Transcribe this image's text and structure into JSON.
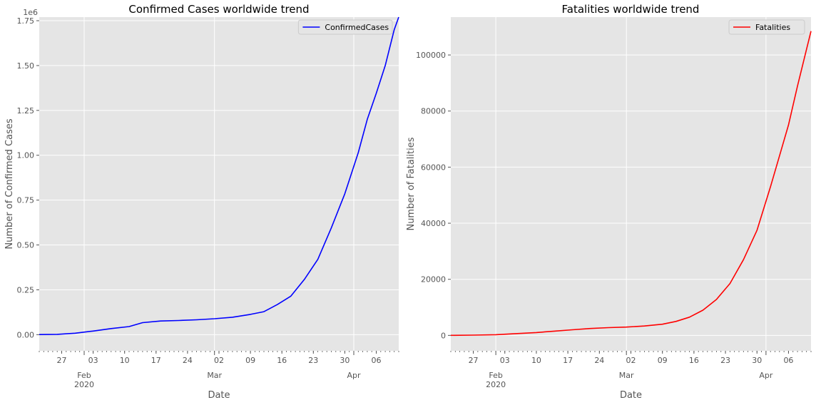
{
  "chart_data": [
    {
      "type": "line",
      "title": "Confirmed Cases worldwide trend",
      "xlabel": "Date",
      "ylabel": "Number of Confirmed Cases",
      "y_offset_text": "1e6",
      "ylim": [
        -0.09,
        1.77
      ],
      "yticks": [
        0.0,
        0.25,
        0.5,
        0.75,
        1.0,
        1.25,
        1.5,
        1.75
      ],
      "ytick_labels": [
        "0.00",
        "0.25",
        "0.50",
        "0.75",
        "1.00",
        "1.25",
        "1.50",
        "1.75"
      ],
      "x_range": [
        "2020-01-22",
        "2020-04-11"
      ],
      "xtick_labels": [
        "27",
        "03",
        "10",
        "17",
        "24",
        "02",
        "09",
        "16",
        "23",
        "30",
        "06"
      ],
      "major_month_labels": [
        "Feb",
        "Mar",
        "Apr"
      ],
      "year_label": "2020",
      "legend_position": "top-right",
      "grid": true,
      "series": [
        {
          "name": "ConfirmedCases",
          "color": "#0000ff",
          "x": [
            "2020-01-22",
            "2020-01-26",
            "2020-01-30",
            "2020-02-03",
            "2020-02-07",
            "2020-02-11",
            "2020-02-14",
            "2020-02-18",
            "2020-02-22",
            "2020-02-26",
            "2020-03-01",
            "2020-03-05",
            "2020-03-09",
            "2020-03-12",
            "2020-03-15",
            "2020-03-18",
            "2020-03-21",
            "2020-03-24",
            "2020-03-27",
            "2020-03-30",
            "2020-04-02",
            "2020-04-04",
            "2020-04-06",
            "2020-04-08",
            "2020-04-10",
            "2020-04-11"
          ],
          "y": [
            0.0006,
            0.002,
            0.008,
            0.02,
            0.034,
            0.045,
            0.067,
            0.076,
            0.079,
            0.083,
            0.089,
            0.097,
            0.113,
            0.128,
            0.168,
            0.215,
            0.308,
            0.42,
            0.595,
            0.785,
            1.015,
            1.2,
            1.345,
            1.5,
            1.7,
            1.77
          ]
        }
      ]
    },
    {
      "type": "line",
      "title": "Fatalities worldwide trend",
      "xlabel": "Date",
      "ylabel": "Number of Fatalities",
      "ylim": [
        -5500,
        113500
      ],
      "yticks": [
        0,
        20000,
        40000,
        60000,
        80000,
        100000
      ],
      "ytick_labels": [
        "0",
        "20000",
        "40000",
        "60000",
        "80000",
        "100000"
      ],
      "x_range": [
        "2020-01-22",
        "2020-04-11"
      ],
      "xtick_labels": [
        "27",
        "03",
        "10",
        "17",
        "24",
        "02",
        "09",
        "16",
        "23",
        "30",
        "06"
      ],
      "major_month_labels": [
        "Feb",
        "Mar",
        "Apr"
      ],
      "year_label": "2020",
      "legend_position": "top-right",
      "grid": true,
      "series": [
        {
          "name": "Fatalities",
          "color": "#ff0000",
          "x": [
            "2020-01-22",
            "2020-01-27",
            "2020-02-01",
            "2020-02-05",
            "2020-02-10",
            "2020-02-14",
            "2020-02-18",
            "2020-02-22",
            "2020-02-26",
            "2020-03-01",
            "2020-03-05",
            "2020-03-09",
            "2020-03-12",
            "2020-03-15",
            "2020-03-18",
            "2020-03-21",
            "2020-03-24",
            "2020-03-27",
            "2020-03-30",
            "2020-04-02",
            "2020-04-04",
            "2020-04-06",
            "2020-04-08",
            "2020-04-10",
            "2020-04-11"
          ],
          "y": [
            17,
            82,
            259,
            565,
            1018,
            1526,
            2004,
            2462,
            2763,
            2977,
            3348,
            3988,
            4981,
            6500,
            9000,
            12800,
            18500,
            27000,
            37500,
            53000,
            64000,
            75000,
            89000,
            102000,
            108500
          ]
        }
      ]
    }
  ]
}
